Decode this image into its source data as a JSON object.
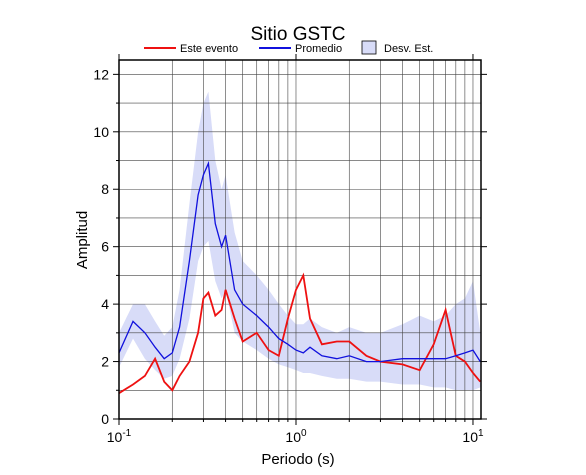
{
  "chart_data": {
    "type": "line",
    "title": "Sitio GSTC",
    "x_label": "Periodo (s)",
    "y_label": "Amplitud",
    "log_x": true,
    "grid": true,
    "xlim": [
      0.1,
      11.1
    ],
    "xticks": [
      {
        "value": 0.1,
        "label": "10",
        "exponent": "-1"
      },
      {
        "value": 1,
        "label": "10",
        "exponent": "0"
      },
      {
        "value": 10,
        "label": "10",
        "exponent": "1"
      }
    ],
    "xminor": [
      0.2,
      0.3,
      0.4,
      0.5,
      0.6,
      0.7,
      0.8,
      0.9,
      2,
      3,
      4,
      5,
      6,
      7,
      8,
      9
    ],
    "ylim": [
      0,
      12.5
    ],
    "yticks": [
      0,
      2,
      4,
      6,
      8,
      10,
      12
    ],
    "yminor": [
      1,
      3,
      5,
      7,
      9,
      11
    ],
    "x": [
      0.1,
      0.12,
      0.14,
      0.16,
      0.18,
      0.2,
      0.22,
      0.25,
      0.28,
      0.3,
      0.32,
      0.35,
      0.38,
      0.4,
      0.45,
      0.5,
      0.6,
      0.7,
      0.8,
      0.9,
      1.0,
      1.1,
      1.2,
      1.4,
      1.7,
      2,
      2.5,
      3,
      4,
      5,
      6,
      7,
      8,
      9,
      10,
      11
    ],
    "band": {
      "name": "Desv. Est.",
      "color": "#d8dcf8",
      "upper": [
        3.0,
        4.0,
        4.0,
        3.4,
        2.9,
        3.2,
        4.5,
        7.5,
        10.0,
        11.0,
        11.4,
        9.0,
        8.0,
        8.5,
        6.5,
        5.5,
        5.0,
        4.5,
        4.0,
        3.6,
        3.3,
        3.3,
        3.5,
        3.2,
        3.0,
        3.2,
        3.0,
        3.0,
        3.3,
        3.6,
        3.4,
        3.6,
        4.0,
        4.2,
        4.8,
        3.0
      ],
      "lower": [
        1.8,
        2.8,
        2.1,
        1.7,
        1.4,
        1.5,
        2.1,
        3.5,
        5.5,
        6.0,
        6.2,
        4.8,
        4.2,
        4.5,
        3.0,
        2.7,
        2.4,
        2.1,
        1.9,
        1.8,
        1.7,
        1.6,
        1.6,
        1.5,
        1.4,
        1.4,
        1.3,
        1.3,
        1.2,
        1.2,
        1.1,
        1.1,
        1.0,
        1.0,
        1.0,
        1.1
      ]
    },
    "series": [
      {
        "name": "Este evento",
        "color": "#ee1111",
        "values": [
          0.9,
          1.2,
          1.5,
          2.1,
          1.3,
          1.0,
          1.5,
          2.0,
          3.0,
          4.2,
          4.4,
          3.6,
          3.8,
          4.5,
          3.5,
          2.7,
          3.0,
          2.4,
          2.2,
          3.5,
          4.5,
          5.0,
          3.5,
          2.6,
          2.7,
          2.7,
          2.2,
          2.0,
          1.9,
          1.7,
          2.6,
          3.8,
          2.2,
          2.0,
          1.6,
          1.3
        ]
      },
      {
        "name": "Promedio",
        "color": "#1111dd",
        "values": [
          2.3,
          3.4,
          3.0,
          2.5,
          2.1,
          2.3,
          3.2,
          5.5,
          7.8,
          8.5,
          8.9,
          6.8,
          6.0,
          6.4,
          4.5,
          4.0,
          3.6,
          3.2,
          2.8,
          2.6,
          2.4,
          2.3,
          2.5,
          2.2,
          2.1,
          2.2,
          2.0,
          2.0,
          2.1,
          2.1,
          2.1,
          2.1,
          2.2,
          2.3,
          2.4,
          2.0
        ]
      }
    ]
  }
}
